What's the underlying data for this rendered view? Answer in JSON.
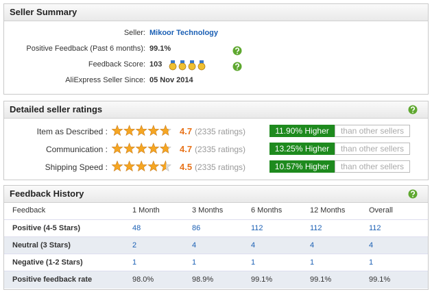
{
  "seller_summary": {
    "title": "Seller Summary",
    "rows": [
      [
        "Seller:",
        "Mikoor Technology"
      ],
      [
        "Positive Feedback (Past 6 months):",
        "99.1%"
      ],
      [
        "Feedback Score:",
        "103"
      ],
      [
        "AliExpress Seller Since:",
        "05 Nov 2014"
      ]
    ]
  },
  "detailed_ratings": {
    "title": "Detailed seller ratings",
    "rows": [
      {
        "label": "Item as Described :",
        "rating": 4.7,
        "count": "(2335 ratings)",
        "comparison": "11.90% Higher",
        "suffix": "than other sellers"
      },
      {
        "label": "Communication :",
        "rating": 4.7,
        "count": "(2335 ratings)",
        "comparison": "13.25% Higher",
        "suffix": "than other sellers"
      },
      {
        "label": "Shipping Speed :",
        "rating": 4.5,
        "count": "(2335 ratings)",
        "comparison": "10.57% Higher",
        "suffix": "than other sellers"
      }
    ]
  },
  "feedback_history": {
    "title": "Feedback History",
    "header": [
      "Feedback",
      "1 Month",
      "3 Months",
      "6 Months",
      "12 Months",
      "Overall"
    ],
    "rows": [
      [
        "Positive (4-5 Stars)",
        "48",
        "86",
        "112",
        "112",
        "112"
      ],
      [
        "Neutral (3 Stars)",
        "2",
        "4",
        "4",
        "4",
        "4"
      ],
      [
        "Negative (1-2 Stars)",
        "1",
        "1",
        "1",
        "1",
        "1"
      ],
      [
        "Positive feedback rate",
        "98.0%",
        "98.9%",
        "99.1%",
        "99.1%",
        "99.1%"
      ]
    ]
  }
}
